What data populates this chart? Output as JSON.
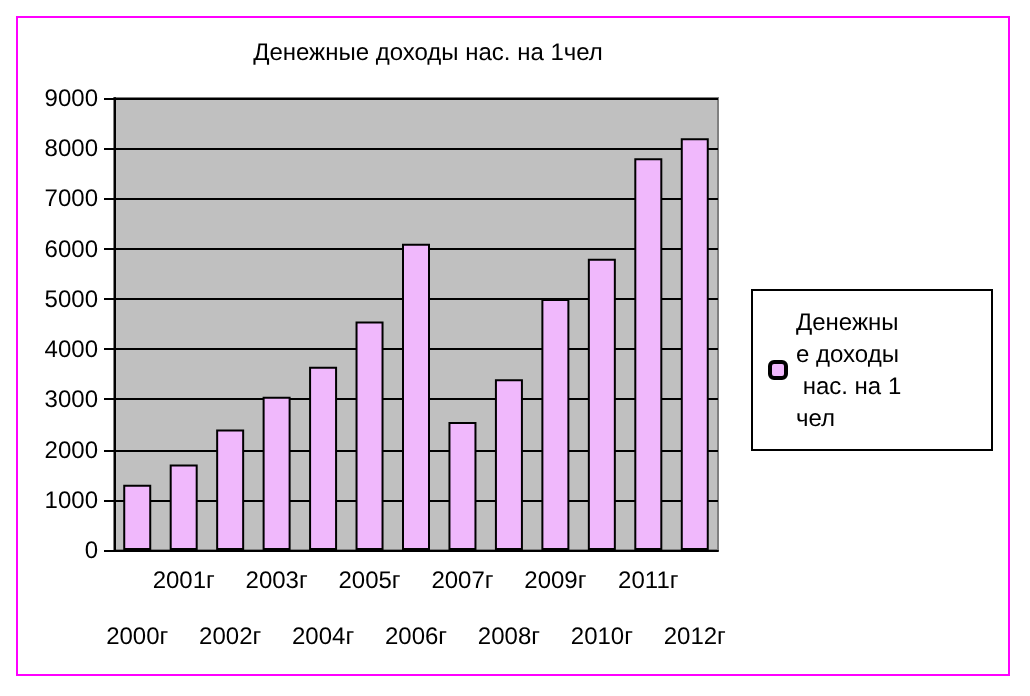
{
  "chart_data": {
    "type": "bar",
    "title": "Денежные доходы нас. на 1чел",
    "categories": [
      "2000г",
      "2001г",
      "2002г",
      "2003г",
      "2004г",
      "2005г",
      "2006г",
      "2007г",
      "2008г",
      "2009г",
      "2010г",
      "2011г",
      "2012г"
    ],
    "series": [
      {
        "name": "Денежные доходы нас. на 1чел",
        "color": "#f0b8fc",
        "values": [
          1300,
          1700,
          2400,
          3050,
          3650,
          4550,
          6100,
          2550,
          3400,
          5000,
          5800,
          7800,
          8200
        ]
      }
    ],
    "ylim": [
      0,
      9000
    ],
    "yticks": [
      0,
      1000,
      2000,
      3000,
      4000,
      5000,
      6000,
      7000,
      8000,
      9000
    ],
    "grid": "y",
    "legend": "right"
  }
}
